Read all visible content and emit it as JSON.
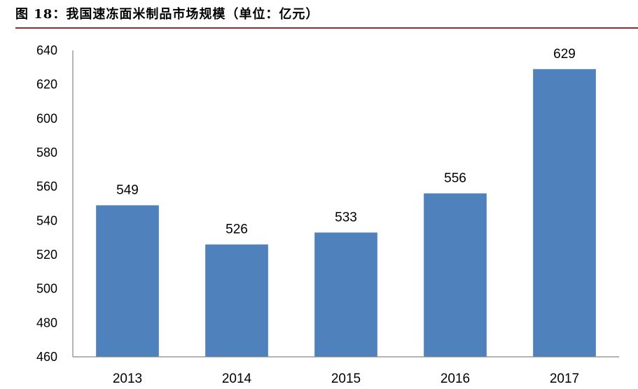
{
  "chart_data": {
    "type": "bar",
    "title": "图 18：我国速冻面米制品市场规模（单位：亿元）",
    "categories": [
      "2013",
      "2014",
      "2015",
      "2016",
      "2017"
    ],
    "values": [
      549,
      526,
      533,
      556,
      629
    ],
    "ylim": [
      460,
      640
    ],
    "y_ticks": [
      460,
      480,
      500,
      520,
      540,
      560,
      580,
      600,
      620,
      640
    ],
    "data_labels": true,
    "grid": false,
    "legend": "none"
  },
  "colors": {
    "bar": "#4F81BD",
    "caption_rule": "#A3262A",
    "axis": "#868686",
    "text": "#000000"
  }
}
